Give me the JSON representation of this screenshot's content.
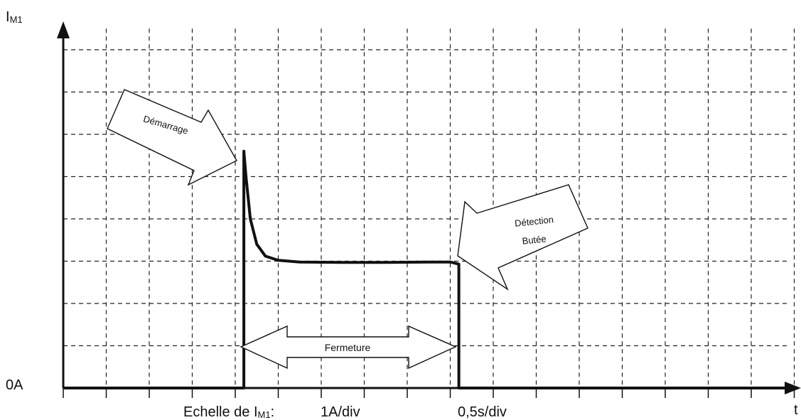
{
  "chart_data": {
    "type": "line",
    "y_axis_label": {
      "main": "I",
      "sub": "M1"
    },
    "x_axis_label": "t",
    "zero_label": "0A",
    "scale_text": {
      "prefix": "Echelle de I",
      "sub": "M1",
      "suffix": ":",
      "current": "1A/div",
      "time": "0,5s/div"
    },
    "x_unit": "div",
    "y_unit": "div",
    "xlim": [
      0,
      17
    ],
    "ylim": [
      0,
      8.5
    ],
    "grid": true,
    "series": [
      {
        "points": [
          [
            0,
            0
          ],
          [
            4.2,
            0
          ],
          [
            4.2,
            5.6
          ],
          [
            4.25,
            5.0
          ],
          [
            4.35,
            4.0
          ],
          [
            4.5,
            3.4
          ],
          [
            4.7,
            3.12
          ],
          [
            5.0,
            3.02
          ],
          [
            5.5,
            2.98
          ],
          [
            6.5,
            2.97
          ],
          [
            7.5,
            2.97
          ],
          [
            8.5,
            2.98
          ],
          [
            9.0,
            2.98
          ],
          [
            9.2,
            2.93
          ],
          [
            9.2,
            0
          ],
          [
            17,
            0
          ]
        ]
      }
    ],
    "annotations": {
      "start": "Démarrage",
      "end_line1": "Détection",
      "end_line2": "Butée",
      "span": "Fermeture"
    }
  }
}
